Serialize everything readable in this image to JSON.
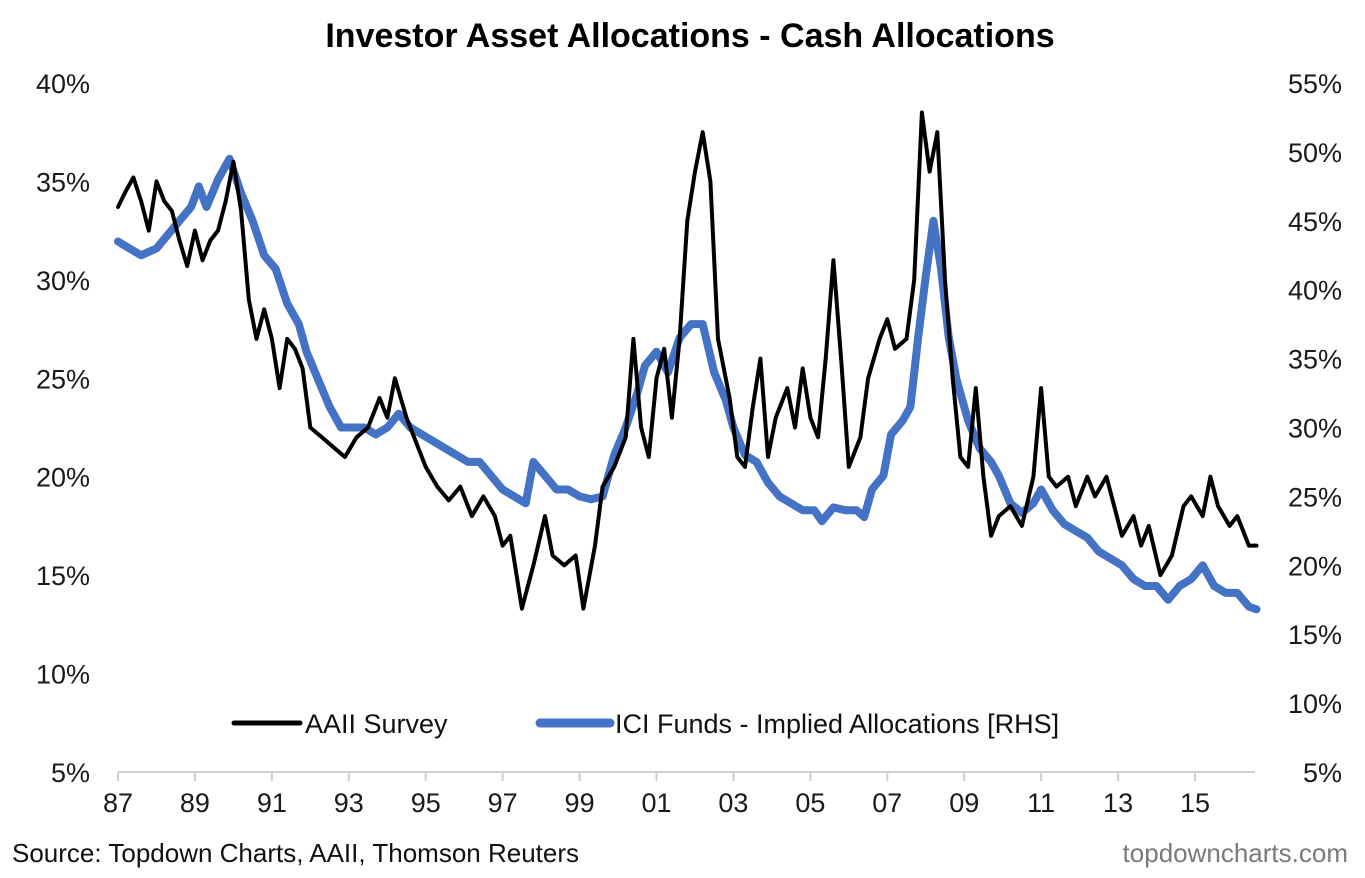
{
  "chart_data": {
    "type": "line",
    "title": "Investor Asset Allocations - Cash Allocations",
    "xlabel": "",
    "ylabel_left": "",
    "ylabel_right": "",
    "x_tick_labels": [
      "87",
      "89",
      "91",
      "93",
      "95",
      "97",
      "99",
      "01",
      "03",
      "05",
      "07",
      "09",
      "11",
      "13",
      "15"
    ],
    "x_ticks": [
      1987,
      1989,
      1991,
      1993,
      1995,
      1997,
      1999,
      2001,
      2003,
      2005,
      2007,
      2009,
      2011,
      2013,
      2015
    ],
    "xlim": [
      1987,
      2016.9
    ],
    "y_left": {
      "ylim": [
        5,
        40
      ],
      "ticks": [
        5,
        10,
        15,
        20,
        25,
        30,
        35,
        40
      ],
      "tick_labels": [
        "5%",
        "10%",
        "15%",
        "20%",
        "25%",
        "30%",
        "35%",
        "40%"
      ]
    },
    "y_right": {
      "ylim": [
        5,
        55
      ],
      "ticks": [
        5,
        10,
        15,
        20,
        25,
        30,
        35,
        40,
        45,
        50,
        55
      ],
      "tick_labels": [
        "5%",
        "10%",
        "15%",
        "20%",
        "25%",
        "30%",
        "35%",
        "40%",
        "45%",
        "50%",
        "55%"
      ]
    },
    "grid": false,
    "legend_position": "bottom-center",
    "series": [
      {
        "name": "AAII Survey",
        "axis": "left",
        "color": "#000000",
        "x": [
          1987.0,
          1987.2,
          1987.4,
          1987.6,
          1987.8,
          1988.0,
          1988.2,
          1988.4,
          1988.6,
          1988.8,
          1989.0,
          1989.2,
          1989.4,
          1989.6,
          1989.8,
          1990.0,
          1990.2,
          1990.4,
          1990.6,
          1990.8,
          1991.0,
          1991.2,
          1991.4,
          1991.6,
          1991.8,
          1992.0,
          1992.3,
          1992.6,
          1992.9,
          1993.2,
          1993.5,
          1993.8,
          1994.0,
          1994.2,
          1994.5,
          1994.8,
          1995.0,
          1995.3,
          1995.6,
          1995.9,
          1996.2,
          1996.5,
          1996.8,
          1997.0,
          1997.2,
          1997.5,
          1997.8,
          1998.1,
          1998.3,
          1998.6,
          1998.9,
          1999.1,
          1999.4,
          1999.6,
          1999.9,
          2000.2,
          2000.4,
          2000.6,
          2000.8,
          2001.0,
          2001.2,
          2001.4,
          2001.6,
          2001.8,
          2002.0,
          2002.2,
          2002.4,
          2002.6,
          2002.9,
          2003.1,
          2003.3,
          2003.5,
          2003.7,
          2003.9,
          2004.1,
          2004.4,
          2004.6,
          2004.8,
          2005.0,
          2005.2,
          2005.4,
          2005.6,
          2005.8,
          2006.0,
          2006.3,
          2006.5,
          2006.8,
          2007.0,
          2007.2,
          2007.5,
          2007.7,
          2007.9,
          2008.1,
          2008.3,
          2008.5,
          2008.7,
          2008.9,
          2009.1,
          2009.3,
          2009.5,
          2009.7,
          2009.9,
          2010.2,
          2010.5,
          2010.8,
          2011.0,
          2011.2,
          2011.4,
          2011.7,
          2011.9,
          2012.2,
          2012.4,
          2012.7,
          2012.9,
          2013.1,
          2013.4,
          2013.6,
          2013.8,
          2014.1,
          2014.4,
          2014.7,
          2014.9,
          2015.2,
          2015.4,
          2015.6,
          2015.9,
          2016.1,
          2016.4,
          2016.6
        ],
        "values": [
          33.7,
          34.5,
          35.2,
          34.0,
          32.5,
          35.0,
          34.0,
          33.5,
          32.0,
          30.7,
          32.5,
          31.0,
          32.0,
          32.5,
          34.0,
          36.0,
          33.5,
          29.0,
          27.0,
          28.5,
          27.0,
          24.5,
          27.0,
          26.5,
          25.5,
          22.5,
          22.0,
          21.5,
          21.0,
          22.0,
          22.5,
          24.0,
          23.0,
          25.0,
          23.0,
          21.5,
          20.5,
          19.5,
          18.8,
          19.5,
          18.0,
          19.0,
          18.0,
          16.5,
          17.0,
          13.3,
          15.5,
          18.0,
          16.0,
          15.5,
          16.0,
          13.3,
          16.5,
          19.5,
          20.5,
          22.0,
          27.0,
          22.5,
          21.0,
          25.0,
          26.5,
          23.0,
          27.0,
          33.0,
          35.5,
          37.5,
          35.0,
          27.0,
          24.0,
          21.0,
          20.5,
          23.5,
          26.0,
          21.0,
          23.0,
          24.5,
          22.5,
          25.5,
          23.0,
          22.0,
          26.0,
          31.0,
          26.0,
          20.5,
          22.0,
          25.0,
          27.0,
          28.0,
          26.5,
          27.0,
          30.0,
          38.5,
          35.5,
          37.5,
          30.0,
          25.0,
          21.0,
          20.5,
          24.5,
          20.0,
          17.0,
          18.0,
          18.5,
          17.5,
          20.0,
          24.5,
          20.0,
          19.5,
          20.0,
          18.5,
          20.0,
          19.0,
          20.0,
          18.5,
          17.0,
          18.0,
          16.5,
          17.5,
          15.0,
          16.0,
          18.5,
          19.0,
          18.0,
          20.0,
          18.5,
          17.5,
          18.0,
          16.5,
          16.5
        ]
      },
      {
        "name": "ICI Funds - Implied Allocations [RHS]",
        "axis": "right",
        "color": "#4472C4",
        "x": [
          1987.0,
          1987.3,
          1987.6,
          1988.0,
          1988.3,
          1988.6,
          1988.9,
          1989.1,
          1989.3,
          1989.6,
          1989.9,
          1990.2,
          1990.5,
          1990.8,
          1991.1,
          1991.4,
          1991.7,
          1991.9,
          1992.2,
          1992.5,
          1992.8,
          1993.1,
          1993.4,
          1993.7,
          1994.0,
          1994.3,
          1994.6,
          1994.9,
          1995.2,
          1995.5,
          1995.8,
          1996.1,
          1996.4,
          1996.7,
          1997.0,
          1997.3,
          1997.6,
          1997.8,
          1998.1,
          1998.4,
          1998.7,
          1999.0,
          1999.3,
          1999.6,
          1999.9,
          2000.2,
          2000.5,
          2000.7,
          2001.0,
          2001.3,
          2001.6,
          2001.9,
          2002.2,
          2002.5,
          2002.8,
          2003.0,
          2003.3,
          2003.6,
          2003.9,
          2004.2,
          2004.5,
          2004.8,
          2005.1,
          2005.3,
          2005.6,
          2005.9,
          2006.2,
          2006.4,
          2006.6,
          2006.9,
          2007.1,
          2007.4,
          2007.6,
          2007.8,
          2008.0,
          2008.2,
          2008.4,
          2008.6,
          2008.8,
          2009.1,
          2009.4,
          2009.7,
          2009.9,
          2010.2,
          2010.5,
          2010.8,
          2011.0,
          2011.3,
          2011.6,
          2011.9,
          2012.2,
          2012.5,
          2012.8,
          2013.1,
          2013.4,
          2013.7,
          2014.0,
          2014.3,
          2014.6,
          2014.9,
          2015.2,
          2015.5,
          2015.8,
          2016.1,
          2016.4,
          2016.6
        ],
        "values": [
          43.5,
          43.0,
          42.5,
          43.0,
          44.0,
          45.0,
          46.0,
          47.5,
          46.0,
          48.0,
          49.5,
          47.0,
          45.0,
          42.5,
          41.5,
          39.0,
          37.5,
          35.5,
          33.5,
          31.5,
          30.0,
          30.0,
          30.0,
          29.5,
          30.0,
          31.0,
          30.0,
          29.5,
          29.0,
          28.5,
          28.0,
          27.5,
          27.5,
          26.5,
          25.5,
          25.0,
          24.5,
          27.5,
          26.5,
          25.5,
          25.5,
          25.0,
          24.8,
          25.0,
          28.0,
          30.0,
          32.5,
          34.5,
          35.5,
          34.0,
          36.5,
          37.5,
          37.5,
          34.0,
          32.0,
          30.0,
          28.0,
          27.5,
          26.0,
          25.0,
          24.5,
          24.0,
          24.0,
          23.2,
          24.2,
          24.0,
          24.0,
          23.5,
          25.5,
          26.5,
          29.5,
          30.5,
          31.5,
          36.5,
          41.0,
          45.0,
          41.5,
          36.5,
          33.5,
          30.5,
          28.5,
          27.5,
          26.5,
          24.5,
          23.8,
          24.5,
          25.5,
          24.0,
          23.0,
          22.5,
          22.0,
          21.0,
          20.5,
          20.0,
          19.0,
          18.5,
          18.5,
          17.5,
          18.5,
          19.0,
          20.0,
          18.5,
          18.0,
          18.0,
          17.0,
          16.8
        ]
      }
    ]
  },
  "legend": {
    "items": [
      {
        "label": "AAII Survey",
        "color": "#000000"
      },
      {
        "label": "ICI Funds - Implied Allocations [RHS]",
        "color": "#4472C4"
      }
    ]
  },
  "footer": {
    "source": "Source: Topdown Charts, AAII, Thomson Reuters",
    "watermark": "topdowncharts.com"
  },
  "colors": {
    "axis": "#d0d0d0"
  }
}
